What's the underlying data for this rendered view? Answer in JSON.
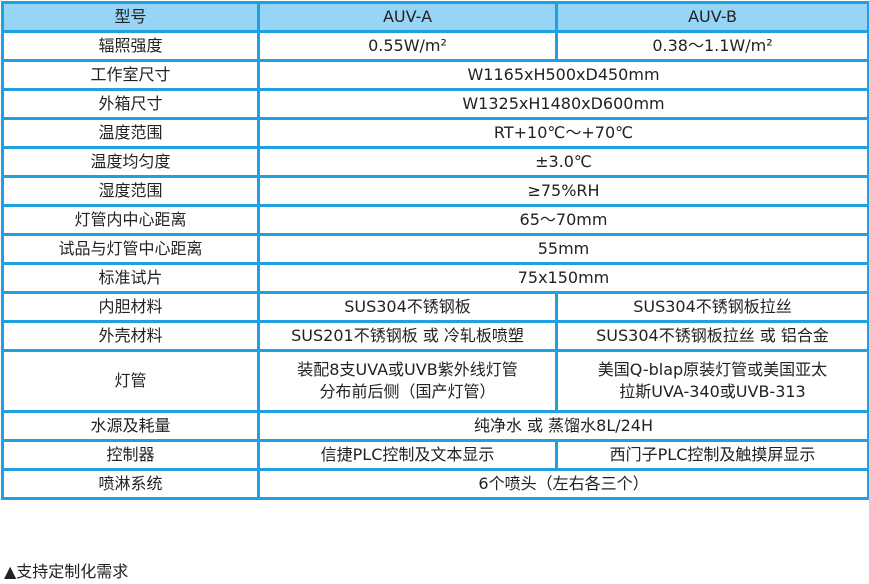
{
  "header": [
    "型号",
    "AUV-A",
    "AUV-B"
  ],
  "rows": [
    {
      "label": "辐照强度",
      "a": "0.55W/m²",
      "b": "0.38～1.1W/m²"
    },
    {
      "label": "工作室尺寸",
      "both": "W1165xH500xD450mm"
    },
    {
      "label": "外箱尺寸",
      "both": "W1325xH1480xD600mm"
    },
    {
      "label": "温度范围",
      "both": "RT+10℃～+70℃"
    },
    {
      "label": "温度均匀度",
      "both": "±3.0℃"
    },
    {
      "label": "湿度范围",
      "both": "≥75%RH"
    },
    {
      "label": "灯管内中心距离",
      "both": "65～70mm"
    },
    {
      "label": "试品与灯管中心距离",
      "both": "55mm"
    },
    {
      "label": "标准试片",
      "both": "75x150mm"
    },
    {
      "label": "内胆材料",
      "a": "SUS304不锈钢板",
      "b": "SUS304不锈钢板拉丝"
    },
    {
      "label": "外壳材料",
      "a": "SUS201不锈钢板 或 冷轧板喷塑",
      "b": "SUS304不锈钢板拉丝 或 铝合金"
    },
    {
      "label": "灯管",
      "a": "装配8支UVA或UVB紫外线灯管",
      "a2": "分布前后侧（国产灯管）",
      "b": "美国Q-blap原装灯管或美国亚太",
      "b2": "拉斯UVA-340或UVB-313"
    },
    {
      "label": "水源及耗量",
      "both": "纯净水 或 蒸馏水8L/24H"
    },
    {
      "label": "控制器",
      "a": "信捷PLC控制及文本显示",
      "b": "西门子PLC控制及触摸屏显示"
    },
    {
      "label": "喷淋系统",
      "both": "6个喷头（左右各三个）"
    }
  ],
  "note": "▲支持定制化需求",
  "colors": {
    "border": "#1ea1e2",
    "header_bg": "#98d4f6"
  }
}
